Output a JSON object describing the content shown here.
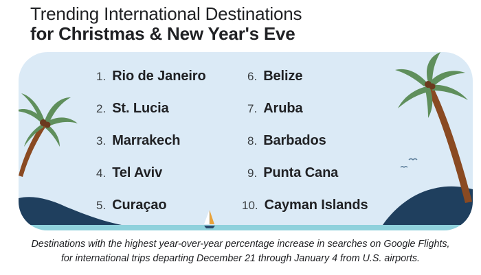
{
  "title": {
    "line1": "Trending International Destinations",
    "line2": "for Christmas & New Year's Eve"
  },
  "destinations": [
    {
      "rank": "1.",
      "name": "Rio de Janeiro"
    },
    {
      "rank": "2.",
      "name": "St. Lucia"
    },
    {
      "rank": "3.",
      "name": "Marrakech"
    },
    {
      "rank": "4.",
      "name": "Tel Aviv"
    },
    {
      "rank": "5.",
      "name": "Curaçao"
    },
    {
      "rank": "6.",
      "name": "Belize"
    },
    {
      "rank": "7.",
      "name": "Aruba"
    },
    {
      "rank": "8.",
      "name": "Barbados"
    },
    {
      "rank": "9.",
      "name": "Punta Cana"
    },
    {
      "rank": "10.",
      "name": "Cayman Islands"
    }
  ],
  "caption": {
    "line1": "Destinations with the highest year-over-year percentage increase in searches on Google Flights,",
    "line2": "for international trips departing December 21 through January 4 from U.S. airports."
  },
  "colors": {
    "sky": "#dbeaf6",
    "water": "#8fd1dc",
    "hill": "#1f3f5e",
    "palm_leaf": "#5f8f5c",
    "palm_trunk": "#8a4a22"
  },
  "icons": [
    "palm-tree-icon",
    "sailboat-icon",
    "bird-icon"
  ]
}
